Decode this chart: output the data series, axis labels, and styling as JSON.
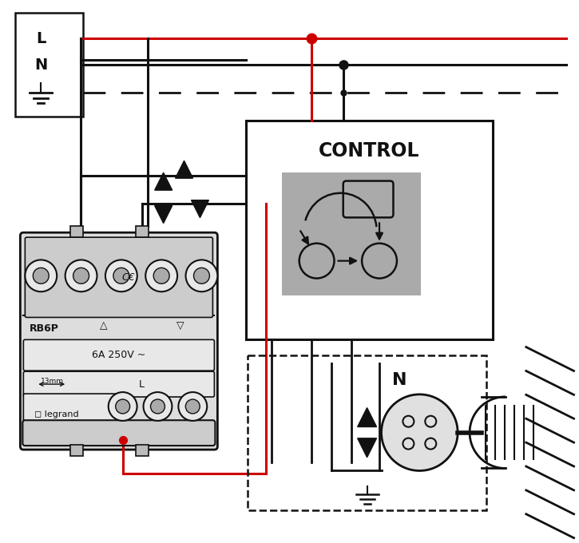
{
  "bg": "#ffffff",
  "red": "#cc0000",
  "blk": "#111111",
  "gray_icon": "#aaaaaa",
  "gray_rb": "#cccccc",
  "gray_rb2": "#e0e0e0",
  "figsize": [
    7.25,
    6.8
  ],
  "dpi": 100,
  "L": "L",
  "N": "N",
  "CONTROL": "CONTROL",
  "RB6P": "RB6P",
  "v6a": "6A 250V ~",
  "mm13": "13mm",
  "legrand": "legrand",
  "N_motor": "N"
}
